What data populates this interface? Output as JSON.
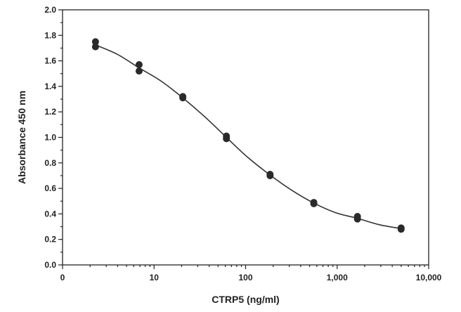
{
  "chart_data": {
    "type": "scatter",
    "xlabel": "CTRP5 (ng/ml)",
    "ylabel": "Absorbance 450 nm",
    "x_scale": "log",
    "xlim": [
      1,
      10000
    ],
    "ylim": [
      0,
      2.0
    ],
    "x_ticks": [
      {
        "value": 1,
        "label": "0"
      },
      {
        "value": 10,
        "label": "10"
      },
      {
        "value": 100,
        "label": "100"
      },
      {
        "value": 1000,
        "label": "1,000"
      },
      {
        "value": 10000,
        "label": "10,000"
      }
    ],
    "y_ticks": [
      {
        "value": 0.0,
        "label": "0.0"
      },
      {
        "value": 0.2,
        "label": "0.2"
      },
      {
        "value": 0.4,
        "label": "0.4"
      },
      {
        "value": 0.6,
        "label": "0.6"
      },
      {
        "value": 0.8,
        "label": "0.8"
      },
      {
        "value": 1.0,
        "label": "1.0"
      },
      {
        "value": 1.2,
        "label": "1.2"
      },
      {
        "value": 1.4,
        "label": "1.4"
      },
      {
        "value": 1.6,
        "label": "1.6"
      },
      {
        "value": 1.8,
        "label": "1.8"
      },
      {
        "value": 2.0,
        "label": "2.0"
      }
    ],
    "grid": false,
    "points": [
      {
        "x": 2.29,
        "y": 1.75
      },
      {
        "x": 2.29,
        "y": 1.71
      },
      {
        "x": 6.86,
        "y": 1.57
      },
      {
        "x": 6.86,
        "y": 1.52
      },
      {
        "x": 20.6,
        "y": 1.32
      },
      {
        "x": 20.6,
        "y": 1.31
      },
      {
        "x": 61.7,
        "y": 1.01
      },
      {
        "x": 61.7,
        "y": 0.99
      },
      {
        "x": 185,
        "y": 0.71
      },
      {
        "x": 185,
        "y": 0.7
      },
      {
        "x": 556,
        "y": 0.49
      },
      {
        "x": 556,
        "y": 0.48
      },
      {
        "x": 1667,
        "y": 0.38
      },
      {
        "x": 1667,
        "y": 0.36
      },
      {
        "x": 5000,
        "y": 0.29
      },
      {
        "x": 5000,
        "y": 0.28
      }
    ],
    "fit_curve": [
      {
        "x": 2.29,
        "y": 1.725
      },
      {
        "x": 4,
        "y": 1.65
      },
      {
        "x": 6.86,
        "y": 1.545
      },
      {
        "x": 12,
        "y": 1.44
      },
      {
        "x": 20.6,
        "y": 1.31
      },
      {
        "x": 36,
        "y": 1.16
      },
      {
        "x": 61.7,
        "y": 1.0
      },
      {
        "x": 105,
        "y": 0.845
      },
      {
        "x": 185,
        "y": 0.705
      },
      {
        "x": 320,
        "y": 0.585
      },
      {
        "x": 556,
        "y": 0.485
      },
      {
        "x": 960,
        "y": 0.41
      },
      {
        "x": 1667,
        "y": 0.365
      },
      {
        "x": 2900,
        "y": 0.315
      },
      {
        "x": 5000,
        "y": 0.285
      }
    ]
  }
}
